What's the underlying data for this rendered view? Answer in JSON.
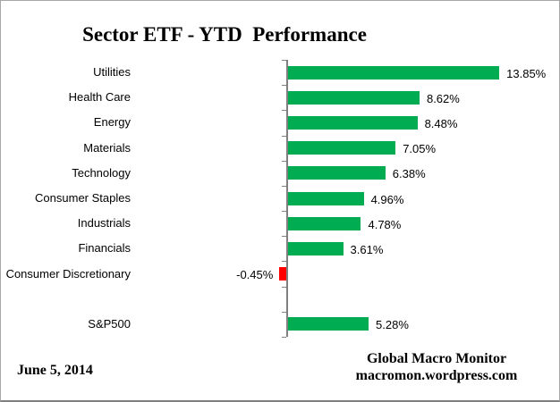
{
  "title": "Sector ETF - YTD  Performance",
  "footer": {
    "date": "June 5, 2014",
    "credit_line1": "Global Macro Monitor",
    "credit_line2": "macromon.wordpress.com"
  },
  "chart_data": {
    "type": "bar",
    "orientation": "horizontal",
    "title": "Sector ETF - YTD  Performance",
    "categories": [
      "Utilities",
      "Health Care",
      "Energy",
      "Materials",
      "Technology",
      "Consumer Staples",
      "Industrials",
      "Financials",
      "Consumer Discretionary",
      "",
      "S&P500"
    ],
    "values": [
      13.85,
      8.62,
      8.48,
      7.05,
      6.38,
      4.96,
      4.78,
      3.61,
      -0.45,
      null,
      5.28
    ],
    "value_labels": [
      "13.85%",
      "8.62%",
      "8.48%",
      "7.05%",
      "6.38%",
      "4.96%",
      "4.78%",
      "3.61%",
      "-0.45%",
      "",
      "5.28%"
    ],
    "xlabel": "",
    "ylabel": "",
    "grid": false,
    "legend": false,
    "positive_color": "#00AC51",
    "negative_color": "#FF0000",
    "axis_color": "#808080",
    "label_color": "#000000"
  }
}
